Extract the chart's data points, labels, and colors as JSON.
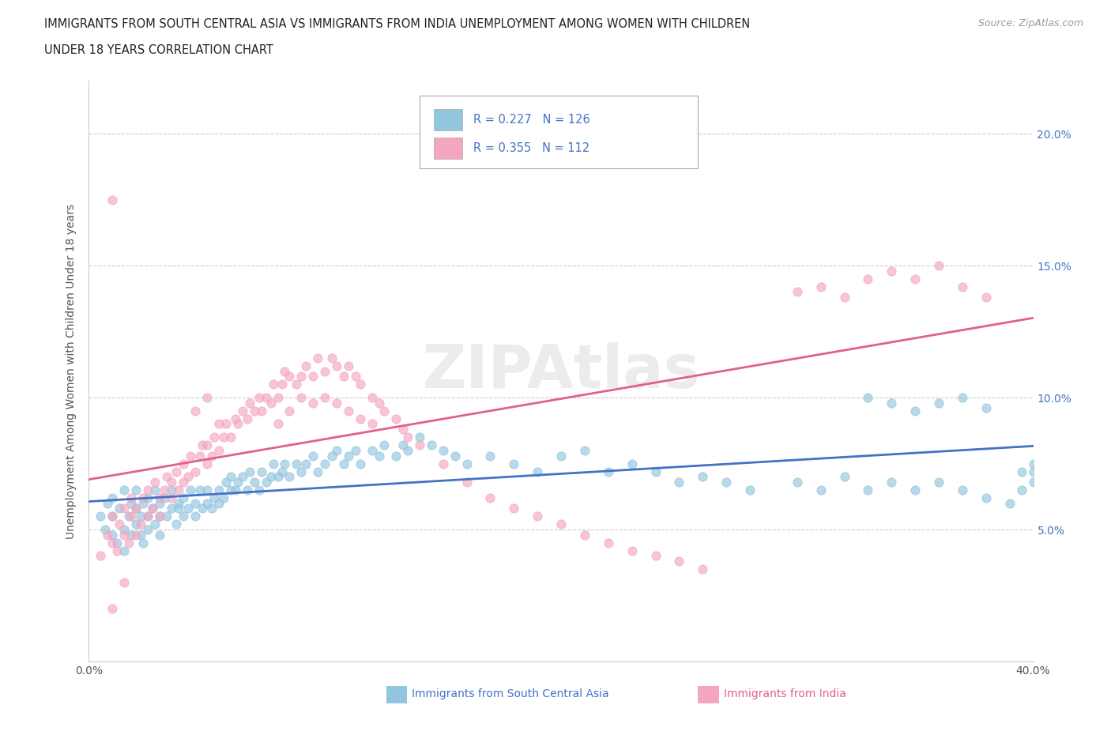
{
  "title_line1": "IMMIGRANTS FROM SOUTH CENTRAL ASIA VS IMMIGRANTS FROM INDIA UNEMPLOYMENT AMONG WOMEN WITH CHILDREN",
  "title_line2": "UNDER 18 YEARS CORRELATION CHART",
  "source": "Source: ZipAtlas.com",
  "ylabel": "Unemployment Among Women with Children Under 18 years",
  "xlim": [
    0.0,
    0.4
  ],
  "ylim": [
    0.0,
    0.22
  ],
  "color_blue": "#92c5de",
  "color_pink": "#f4a6c0",
  "line_blue": "#4472c4",
  "line_pink": "#e06090",
  "R_blue": 0.227,
  "N_blue": 126,
  "R_pink": 0.355,
  "N_pink": 112,
  "legend1": "Immigrants from South Central Asia",
  "legend2": "Immigrants from India",
  "blue_x": [
    0.005,
    0.007,
    0.008,
    0.01,
    0.01,
    0.01,
    0.012,
    0.013,
    0.015,
    0.015,
    0.015,
    0.017,
    0.018,
    0.018,
    0.02,
    0.02,
    0.02,
    0.022,
    0.022,
    0.023,
    0.023,
    0.025,
    0.025,
    0.025,
    0.027,
    0.028,
    0.028,
    0.03,
    0.03,
    0.03,
    0.032,
    0.033,
    0.035,
    0.035,
    0.037,
    0.038,
    0.038,
    0.04,
    0.04,
    0.042,
    0.043,
    0.045,
    0.045,
    0.047,
    0.048,
    0.05,
    0.05,
    0.052,
    0.053,
    0.055,
    0.055,
    0.057,
    0.058,
    0.06,
    0.06,
    0.062,
    0.063,
    0.065,
    0.067,
    0.068,
    0.07,
    0.072,
    0.073,
    0.075,
    0.077,
    0.078,
    0.08,
    0.082,
    0.083,
    0.085,
    0.088,
    0.09,
    0.092,
    0.095,
    0.097,
    0.1,
    0.103,
    0.105,
    0.108,
    0.11,
    0.113,
    0.115,
    0.12,
    0.123,
    0.125,
    0.13,
    0.133,
    0.135,
    0.14,
    0.145,
    0.15,
    0.155,
    0.16,
    0.17,
    0.18,
    0.19,
    0.2,
    0.21,
    0.22,
    0.23,
    0.24,
    0.25,
    0.26,
    0.27,
    0.28,
    0.3,
    0.31,
    0.32,
    0.33,
    0.34,
    0.35,
    0.36,
    0.37,
    0.38,
    0.39,
    0.395,
    0.4,
    0.4,
    0.4,
    0.395,
    0.33,
    0.34,
    0.35,
    0.36,
    0.37,
    0.38
  ],
  "blue_y": [
    0.055,
    0.05,
    0.06,
    0.048,
    0.055,
    0.062,
    0.045,
    0.058,
    0.05,
    0.065,
    0.042,
    0.055,
    0.048,
    0.06,
    0.052,
    0.058,
    0.065,
    0.048,
    0.055,
    0.06,
    0.045,
    0.055,
    0.062,
    0.05,
    0.058,
    0.052,
    0.065,
    0.055,
    0.06,
    0.048,
    0.062,
    0.055,
    0.058,
    0.065,
    0.052,
    0.058,
    0.06,
    0.055,
    0.062,
    0.058,
    0.065,
    0.055,
    0.06,
    0.065,
    0.058,
    0.06,
    0.065,
    0.058,
    0.062,
    0.06,
    0.065,
    0.062,
    0.068,
    0.065,
    0.07,
    0.065,
    0.068,
    0.07,
    0.065,
    0.072,
    0.068,
    0.065,
    0.072,
    0.068,
    0.07,
    0.075,
    0.07,
    0.072,
    0.075,
    0.07,
    0.075,
    0.072,
    0.075,
    0.078,
    0.072,
    0.075,
    0.078,
    0.08,
    0.075,
    0.078,
    0.08,
    0.075,
    0.08,
    0.078,
    0.082,
    0.078,
    0.082,
    0.08,
    0.085,
    0.082,
    0.08,
    0.078,
    0.075,
    0.078,
    0.075,
    0.072,
    0.078,
    0.08,
    0.072,
    0.075,
    0.072,
    0.068,
    0.07,
    0.068,
    0.065,
    0.068,
    0.065,
    0.07,
    0.065,
    0.068,
    0.065,
    0.068,
    0.065,
    0.062,
    0.06,
    0.065,
    0.068,
    0.072,
    0.075,
    0.072,
    0.1,
    0.098,
    0.095,
    0.098,
    0.1,
    0.096
  ],
  "pink_x": [
    0.005,
    0.008,
    0.01,
    0.01,
    0.012,
    0.013,
    0.015,
    0.015,
    0.017,
    0.018,
    0.018,
    0.02,
    0.02,
    0.022,
    0.023,
    0.025,
    0.025,
    0.027,
    0.028,
    0.03,
    0.03,
    0.032,
    0.033,
    0.035,
    0.035,
    0.037,
    0.038,
    0.04,
    0.04,
    0.042,
    0.043,
    0.045,
    0.047,
    0.048,
    0.05,
    0.05,
    0.052,
    0.053,
    0.055,
    0.057,
    0.058,
    0.06,
    0.062,
    0.063,
    0.065,
    0.067,
    0.068,
    0.07,
    0.072,
    0.073,
    0.075,
    0.077,
    0.078,
    0.08,
    0.082,
    0.083,
    0.085,
    0.088,
    0.09,
    0.092,
    0.095,
    0.097,
    0.1,
    0.103,
    0.105,
    0.108,
    0.11,
    0.113,
    0.115,
    0.12,
    0.123,
    0.125,
    0.13,
    0.133,
    0.135,
    0.14,
    0.15,
    0.16,
    0.17,
    0.18,
    0.19,
    0.2,
    0.21,
    0.22,
    0.23,
    0.24,
    0.25,
    0.26,
    0.08,
    0.085,
    0.09,
    0.095,
    0.1,
    0.105,
    0.11,
    0.115,
    0.12,
    0.045,
    0.05,
    0.055,
    0.01,
    0.01,
    0.015,
    0.3,
    0.31,
    0.32,
    0.33,
    0.34,
    0.35,
    0.36,
    0.37,
    0.38
  ],
  "pink_y": [
    0.04,
    0.048,
    0.045,
    0.055,
    0.042,
    0.052,
    0.048,
    0.058,
    0.045,
    0.055,
    0.062,
    0.048,
    0.058,
    0.052,
    0.062,
    0.055,
    0.065,
    0.058,
    0.068,
    0.055,
    0.062,
    0.065,
    0.07,
    0.062,
    0.068,
    0.072,
    0.065,
    0.068,
    0.075,
    0.07,
    0.078,
    0.072,
    0.078,
    0.082,
    0.075,
    0.082,
    0.078,
    0.085,
    0.08,
    0.085,
    0.09,
    0.085,
    0.092,
    0.09,
    0.095,
    0.092,
    0.098,
    0.095,
    0.1,
    0.095,
    0.1,
    0.098,
    0.105,
    0.1,
    0.105,
    0.11,
    0.108,
    0.105,
    0.108,
    0.112,
    0.108,
    0.115,
    0.11,
    0.115,
    0.112,
    0.108,
    0.112,
    0.108,
    0.105,
    0.1,
    0.098,
    0.095,
    0.092,
    0.088,
    0.085,
    0.082,
    0.075,
    0.068,
    0.062,
    0.058,
    0.055,
    0.052,
    0.048,
    0.045,
    0.042,
    0.04,
    0.038,
    0.035,
    0.09,
    0.095,
    0.1,
    0.098,
    0.1,
    0.098,
    0.095,
    0.092,
    0.09,
    0.095,
    0.1,
    0.09,
    0.02,
    0.175,
    0.03,
    0.14,
    0.142,
    0.138,
    0.145,
    0.148,
    0.145,
    0.15,
    0.142,
    0.138
  ]
}
